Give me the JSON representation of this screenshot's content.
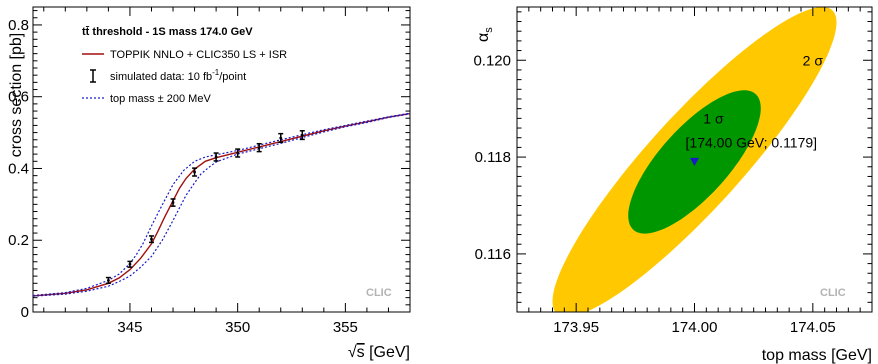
{
  "chart_data": [
    {
      "type": "line",
      "title": "",
      "xlabel_sqrt": "√",
      "xlabel_var": "s",
      "xlabel_unit": " [GeV]",
      "ylabel": "cross section [pb]",
      "xlim": [
        340.5,
        358
      ],
      "ylim": [
        0,
        0.85
      ],
      "x_ticks": [
        345,
        350,
        355
      ],
      "y_ticks": [
        0,
        0.2,
        0.4,
        0.6,
        0.8
      ],
      "x_tick_labels": [
        "345",
        "350",
        "355"
      ],
      "y_tick_labels": [
        "0",
        "0.2",
        "0.4",
        "0.6",
        "0.8"
      ],
      "legend_header_pre": "t",
      "legend_header_bar": "t̄",
      "legend_header_post": " threshold - 1S mass 174.0 GeV",
      "legend_placement": "top-left",
      "series": [
        {
          "name": "TOPPIK NNLO + CLIC350 LS + ISR",
          "color": "#a01010",
          "style": "solid",
          "x": [
            340.5,
            342,
            343,
            344,
            344.5,
            345,
            345.5,
            346,
            346.3,
            346.6,
            347,
            347.3,
            347.6,
            348,
            348.5,
            349,
            350,
            351,
            352,
            353,
            354,
            355,
            356,
            357,
            358
          ],
          "y": [
            0.045,
            0.052,
            0.062,
            0.08,
            0.095,
            0.118,
            0.15,
            0.19,
            0.225,
            0.263,
            0.31,
            0.345,
            0.372,
            0.398,
            0.42,
            0.43,
            0.445,
            0.46,
            0.475,
            0.49,
            0.505,
            0.518,
            0.53,
            0.543,
            0.553
          ]
        },
        {
          "name": "top mass ± 200 MeV",
          "color": "#1a1ac8",
          "style": "dotted",
          "x": [
            340.5,
            342,
            343,
            344,
            344.5,
            345,
            345.3,
            345.6,
            346,
            346.3,
            346.6,
            347,
            347.5,
            348,
            348.5,
            349,
            350,
            351,
            352,
            353,
            354,
            355,
            356,
            357,
            358
          ],
          "y": [
            0.046,
            0.054,
            0.066,
            0.088,
            0.106,
            0.135,
            0.16,
            0.19,
            0.24,
            0.275,
            0.31,
            0.355,
            0.395,
            0.42,
            0.432,
            0.438,
            0.45,
            0.465,
            0.48,
            0.494,
            0.508,
            0.52,
            0.532,
            0.544,
            0.554
          ]
        },
        {
          "name": "",
          "color": "#1a1ac8",
          "style": "dotted",
          "x": [
            340.5,
            342,
            343,
            344,
            344.5,
            345,
            345.5,
            346,
            346.5,
            347,
            347.3,
            347.6,
            348,
            348.3,
            348.7,
            349,
            350,
            351,
            352,
            353,
            354,
            355,
            356,
            357,
            358
          ],
          "y": [
            0.044,
            0.05,
            0.058,
            0.072,
            0.085,
            0.1,
            0.125,
            0.155,
            0.2,
            0.255,
            0.29,
            0.325,
            0.36,
            0.385,
            0.405,
            0.418,
            0.44,
            0.455,
            0.47,
            0.486,
            0.502,
            0.516,
            0.528,
            0.542,
            0.552
          ]
        }
      ],
      "points": {
        "name": "simulated data: 10 fb",
        "name_sup": "-1",
        "name_post": "/point",
        "x": [
          344,
          345,
          346,
          347,
          348,
          349,
          350,
          351,
          352,
          353
        ],
        "y": [
          0.088,
          0.133,
          0.203,
          0.305,
          0.39,
          0.432,
          0.443,
          0.458,
          0.485,
          0.493
        ],
        "err": [
          0.008,
          0.008,
          0.009,
          0.01,
          0.011,
          0.011,
          0.011,
          0.011,
          0.012,
          0.012
        ]
      },
      "watermark": "CLIC"
    },
    {
      "type": "contour",
      "title": "",
      "xlabel": "top mass [GeV]",
      "ylabel_base": "α",
      "ylabel_sub": "s",
      "xlim": [
        173.925,
        174.075
      ],
      "ylim": [
        0.1148,
        0.1211
      ],
      "x_ticks": [
        173.95,
        174.0,
        174.05
      ],
      "y_ticks": [
        0.116,
        0.118,
        0.12
      ],
      "x_tick_labels": [
        "173.95",
        "174.00",
        "174.05"
      ],
      "y_tick_labels": [
        "0.116",
        "0.118",
        "0.120"
      ],
      "best_fit": {
        "x": 174.0,
        "y": 0.1179,
        "label": "[174.00 GeV; 0.1179]",
        "color": "#1a1ac8"
      },
      "regions": [
        {
          "label": "2 σ",
          "color": "#ffc800",
          "cx": 174.0,
          "cy": 0.1179,
          "sx": 0.06,
          "sy": 0.0032,
          "rho": 0.9
        },
        {
          "label": "1 σ",
          "color": "#009600",
          "cx": 174.0,
          "cy": 0.1179,
          "sx": 0.028,
          "sy": 0.00148,
          "rho": 0.75
        }
      ],
      "watermark": "CLIC"
    }
  ]
}
